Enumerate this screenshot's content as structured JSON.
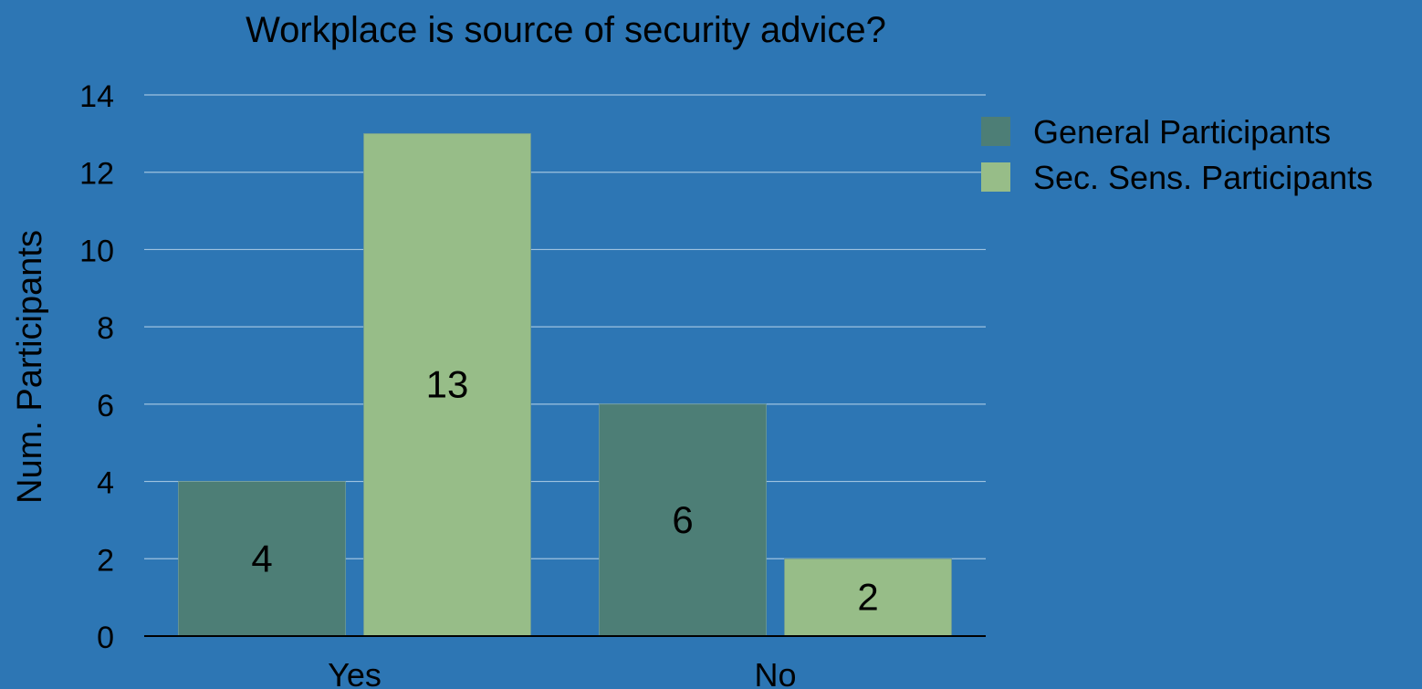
{
  "chart_data": {
    "type": "bar",
    "title": "Workplace is source of security advice?",
    "xlabel": "",
    "ylabel": "Num. Participants",
    "categories": [
      "Yes",
      "No"
    ],
    "series": [
      {
        "name": "General Participants",
        "values": [
          4,
          6
        ],
        "color": "#4d7e76"
      },
      {
        "name": "Sec. Sens. Participants",
        "values": [
          13,
          2
        ],
        "color": "#97bd88"
      }
    ],
    "ylim": [
      0,
      14
    ],
    "yticks": [
      0,
      2,
      4,
      6,
      8,
      10,
      12,
      14
    ],
    "grid": true,
    "legend": "right",
    "data_labels": true,
    "background": "#2d76b4",
    "gridline_color": "#9fc3e0"
  }
}
